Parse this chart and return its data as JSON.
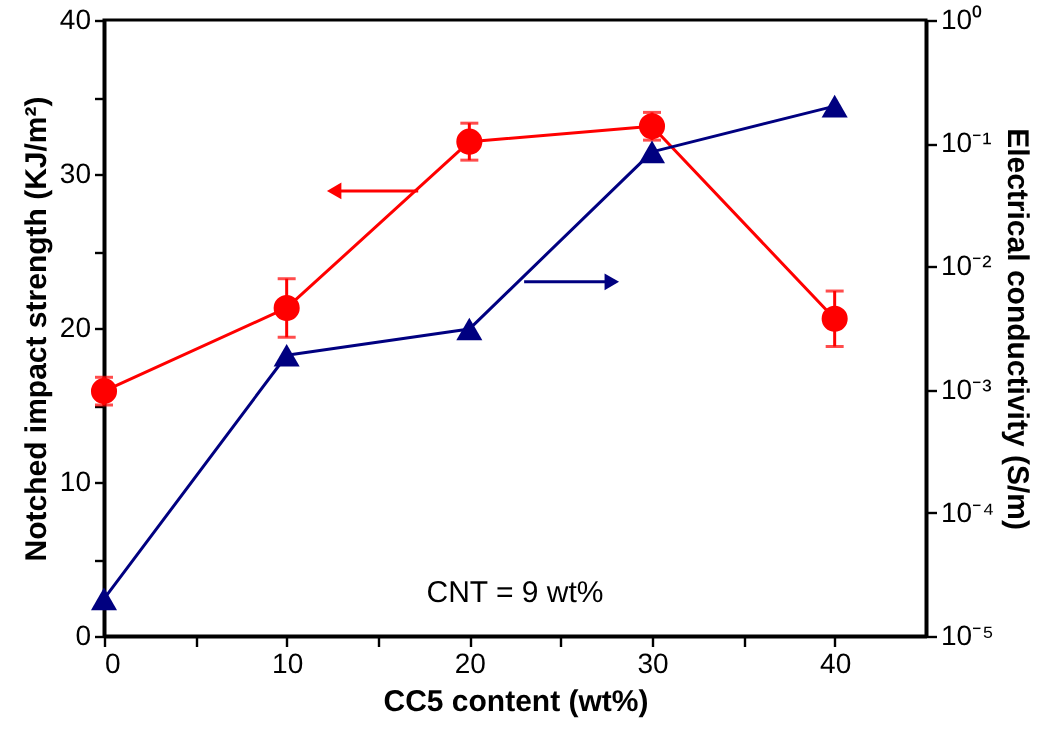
{
  "chart_data": {
    "type": "line",
    "xlabel": "CC5 content (wt%)",
    "ylabel": "Notched impact strength (KJ/m²)",
    "y2label": "Electrical conductivity (S/m)",
    "x": [
      0,
      10,
      20,
      30,
      40
    ],
    "series": [
      {
        "color": "#ff0000",
        "marker": "circle",
        "values": [
          15.9,
          21.3,
          32.1,
          33.1,
          20.6
        ],
        "errors": [
          0.9,
          1.9,
          1.2,
          0.9,
          1.8
        ]
      },
      {
        "color": "#000080",
        "marker": "triangle",
        "axis": "y2",
        "values": [
          2e-05,
          0.0019,
          0.0031,
          0.085,
          0.2
        ]
      }
    ],
    "xlim": [
      0,
      45
    ],
    "xticks": [
      0,
      {
        "value": 5,
        "label": null
      },
      10,
      {
        "value": 15,
        "label": null
      },
      20,
      {
        "value": 25,
        "label": null
      },
      30,
      {
        "value": 35,
        "label": null
      },
      40
    ],
    "ylim": [
      0,
      40
    ],
    "yticks": [
      0,
      {
        "value": 5,
        "label": null
      },
      10,
      {
        "value": 15,
        "label": null
      },
      20,
      {
        "value": 25,
        "label": null
      },
      30,
      {
        "value": 35,
        "label": null
      },
      40
    ],
    "y2lim": [
      1e-05,
      1
    ],
    "y2ticks": [
      {
        "value": 1e-05,
        "label": "10⁻⁵"
      },
      {
        "value": 0.0001,
        "label": "10⁻⁴"
      },
      {
        "value": 0.001,
        "label": "10⁻³"
      },
      {
        "value": 0.01,
        "label": "10⁻²"
      },
      {
        "value": 0.1,
        "label": "10⁻¹"
      },
      {
        "value": 1,
        "label": "10⁰"
      }
    ],
    "log": "y2",
    "grid": false,
    "annotations": [
      "CNT = 9 wt%"
    ]
  }
}
